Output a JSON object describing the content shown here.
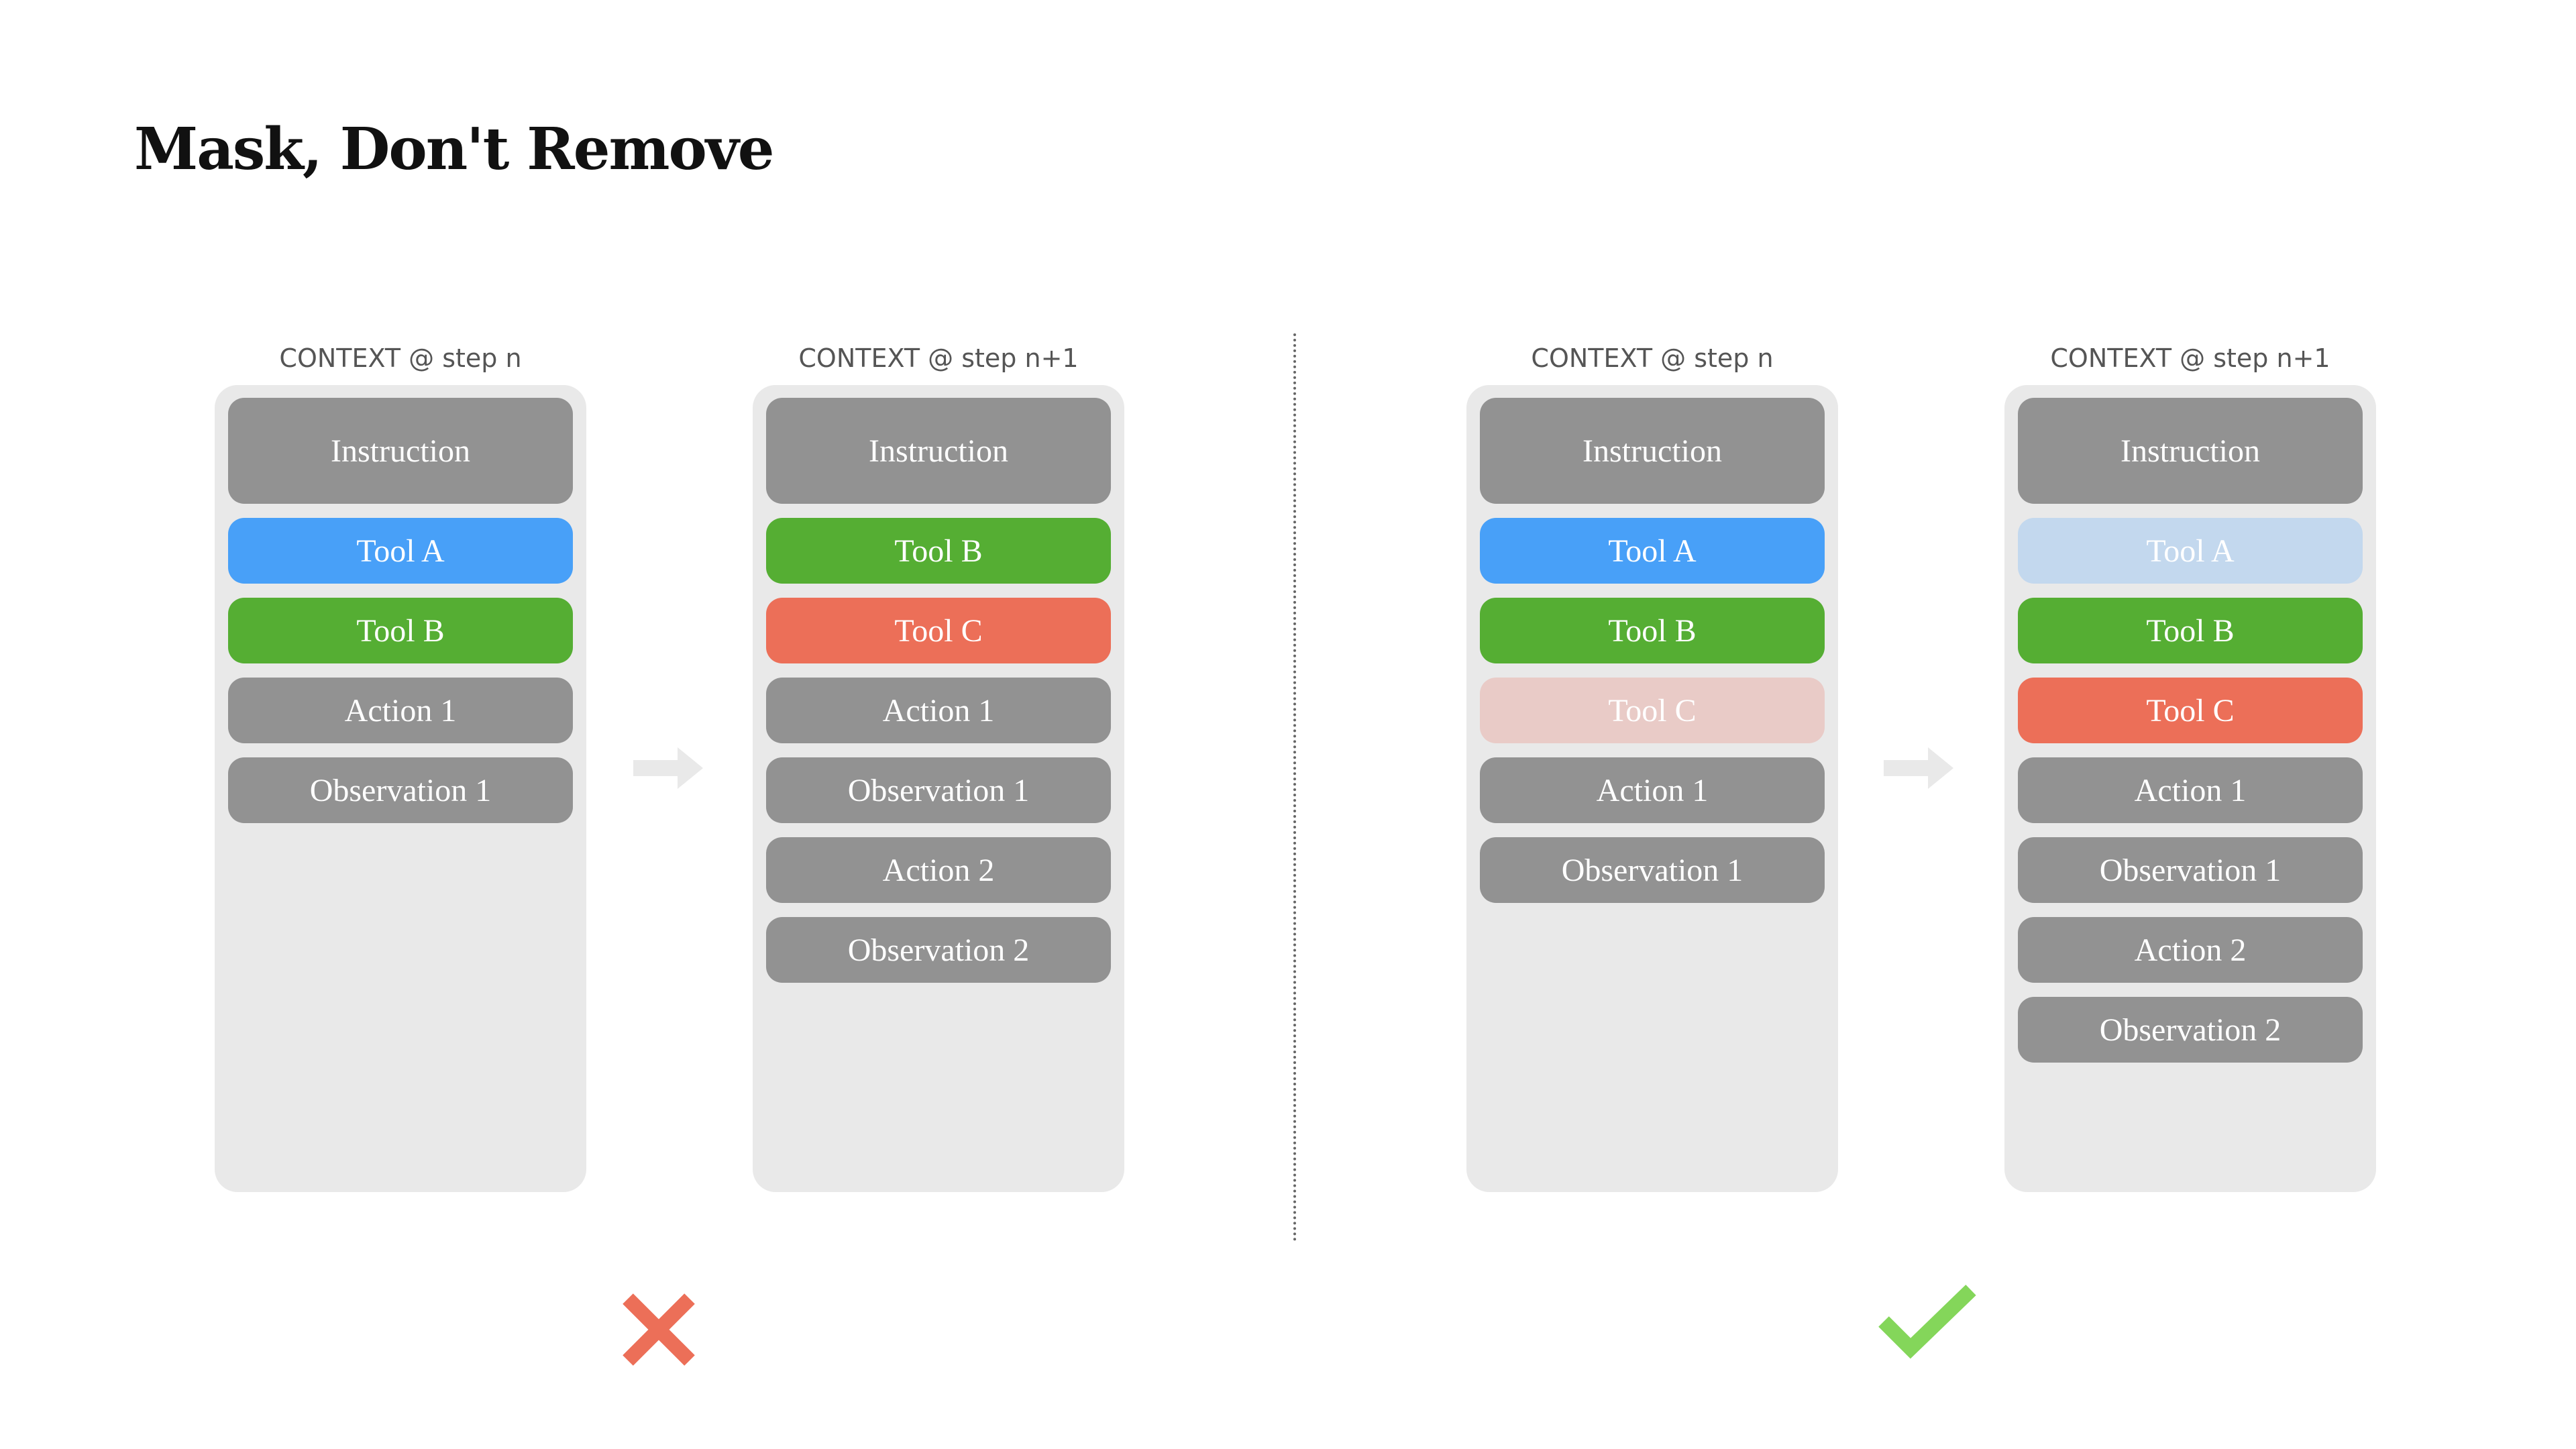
{
  "title": "Mask, Don't Remove",
  "colors": {
    "context": "#929292",
    "tool_a": "#48a0f8",
    "tool_b": "#55ae33",
    "tool_c": "#ec6f58",
    "tool_a_masked": "#c3d8ee",
    "tool_c_masked": "#e9cbc7",
    "panel": "#e9e9e9",
    "wrong": "#ec6f58",
    "right": "#84d65a"
  },
  "columns": [
    {
      "label": "CONTEXT @ step n",
      "blocks": [
        {
          "text": "Instruction",
          "kind": "context"
        },
        {
          "text": "Tool A",
          "kind": "tool_a"
        },
        {
          "text": "Tool B",
          "kind": "tool_b"
        },
        {
          "text": "Action 1",
          "kind": "context"
        },
        {
          "text": "Observation 1",
          "kind": "context"
        }
      ]
    },
    {
      "label": "CONTEXT @ step n+1",
      "blocks": [
        {
          "text": "Instruction",
          "kind": "context"
        },
        {
          "text": "Tool B",
          "kind": "tool_b"
        },
        {
          "text": "Tool C",
          "kind": "tool_c"
        },
        {
          "text": "Action 1",
          "kind": "context"
        },
        {
          "text": "Observation 1",
          "kind": "context"
        },
        {
          "text": "Action 2",
          "kind": "context"
        },
        {
          "text": "Observation 2",
          "kind": "context"
        }
      ]
    },
    {
      "label": "CONTEXT @ step n",
      "blocks": [
        {
          "text": "Instruction",
          "kind": "context"
        },
        {
          "text": "Tool A",
          "kind": "tool_a"
        },
        {
          "text": "Tool B",
          "kind": "tool_b"
        },
        {
          "text": "Tool C",
          "kind": "tool_c_masked"
        },
        {
          "text": "Action 1",
          "kind": "context"
        },
        {
          "text": "Observation 1",
          "kind": "context"
        }
      ]
    },
    {
      "label": "CONTEXT @ step n+1",
      "blocks": [
        {
          "text": "Instruction",
          "kind": "context"
        },
        {
          "text": "Tool A",
          "kind": "tool_a_masked"
        },
        {
          "text": "Tool B",
          "kind": "tool_b"
        },
        {
          "text": "Tool C",
          "kind": "tool_c"
        },
        {
          "text": "Action 1",
          "kind": "context"
        },
        {
          "text": "Observation 1",
          "kind": "context"
        },
        {
          "text": "Action 2",
          "kind": "context"
        },
        {
          "text": "Observation 2",
          "kind": "context"
        }
      ]
    }
  ],
  "verdicts": {
    "left": "cross-icon",
    "right": "check-icon"
  }
}
